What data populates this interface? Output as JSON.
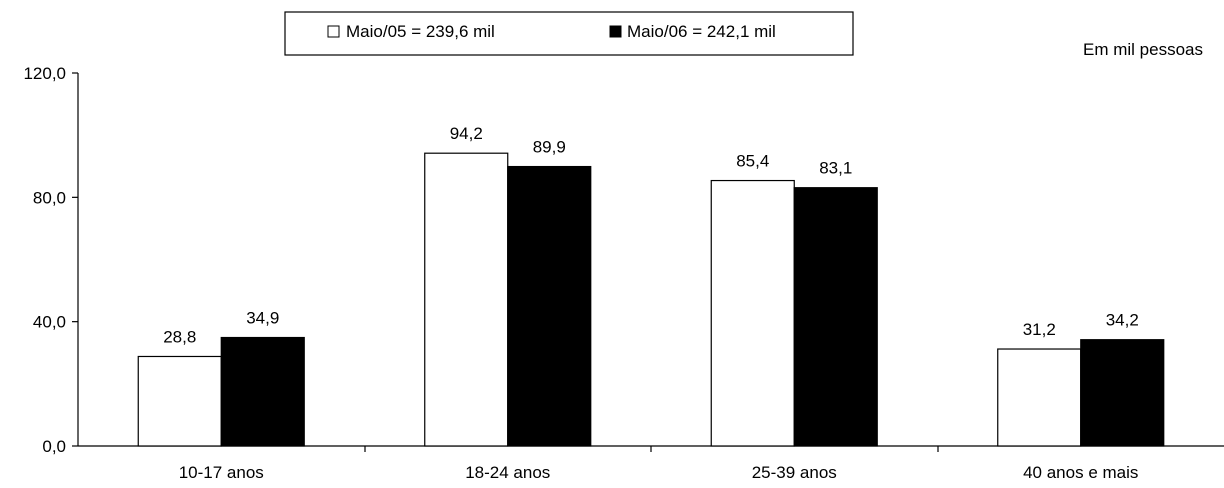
{
  "chart_data": {
    "type": "bar",
    "unit_note": "Em mil pessoas",
    "categories": [
      "10-17 anos",
      "18-24 anos",
      "25-39 anos",
      "40 anos e mais"
    ],
    "series": [
      {
        "name": "Maio/05 = 239,6 mil",
        "values": [
          28.8,
          94.2,
          85.4,
          31.2
        ],
        "color": "#ffffff"
      },
      {
        "name": "Maio/06 = 242,1 mil",
        "values": [
          34.9,
          89.9,
          83.1,
          34.2
        ],
        "color": "#000000"
      }
    ],
    "data_labels": [
      [
        "28,8",
        "94,2",
        "85,4",
        "31,2"
      ],
      [
        "34,9",
        "89,9",
        "83,1",
        "34,2"
      ]
    ],
    "y_ticks": [
      "0,0",
      "40,0",
      "80,0",
      "120,0"
    ],
    "ylim": [
      0,
      120
    ],
    "y_tick_values": [
      0,
      40,
      80,
      120
    ],
    "grid": false,
    "legend_position": "top-center"
  }
}
